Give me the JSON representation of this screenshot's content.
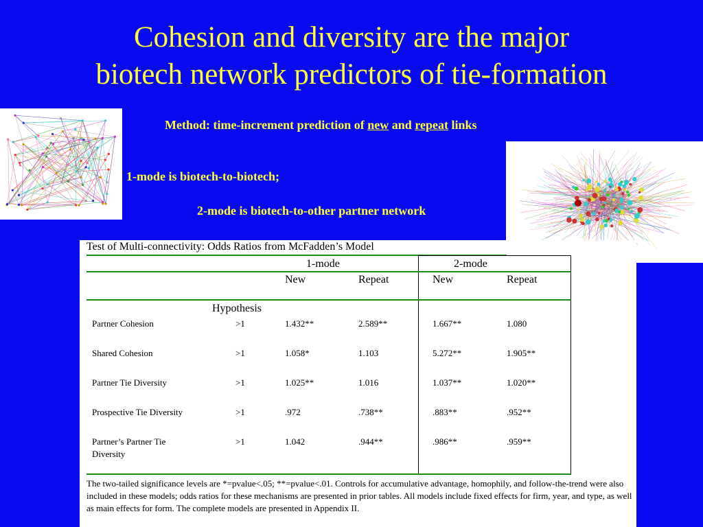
{
  "title_line1": "Cohesion and diversity are the major",
  "title_line2": "biotech network predictors of tie-formation",
  "method": {
    "prefix": "Method: time-increment prediction of ",
    "new": "new",
    "and": " and ",
    "repeat": "repeat",
    "suffix": " links"
  },
  "mode1_text": "1-mode is biotech-to-biotech;",
  "mode2_text": "2-mode is biotech-to-other partner network",
  "table": {
    "title": "Test of Multi-connectivity: Odds Ratios from McFadden’s Model",
    "group1": "1-mode",
    "group2": "2-mode",
    "col_new": "New",
    "col_repeat": "Repeat",
    "hypothesis": "Hypothesis",
    "rows": [
      {
        "label": "Partner Cohesion",
        "hyp": ">1",
        "m1_new": "1.432**",
        "m1_rep": "2.589**",
        "m2_new": "1.667**",
        "m2_rep": "1.080"
      },
      {
        "label": "Shared Cohesion",
        "hyp": ">1",
        "m1_new": "1.058*",
        "m1_rep": "1.103",
        "m2_new": "5.272**",
        "m2_rep": "1.905**"
      },
      {
        "label": "Partner Tie Diversity",
        "hyp": ">1",
        "m1_new": "1.025**",
        "m1_rep": "1.016",
        "m2_new": "1.037**",
        "m2_rep": "1.020**"
      },
      {
        "label": "Prospective Tie Diversity",
        "hyp": ">1",
        "m1_new": ".972",
        "m1_rep": ".738**",
        "m2_new": ".883**",
        "m2_rep": ".952**"
      },
      {
        "label": "Partner’s Partner Tie Diversity",
        "hyp": ">1",
        "m1_new": "1.042",
        "m1_rep": ".944**",
        "m2_new": ".986**",
        "m2_rep": ".959**"
      }
    ],
    "footnote": "The two-tailed significance levels are *=pvalue<.05; **=pvalue<.01. Controls for accumulative advantage, homophily, and follow-the-trend were also included in these models; odds ratios for these mechanisms are presented in prior tables. All models include fixed effects for firm, year, and type, as well as main effects for form. The complete models are presented in Appendix II."
  },
  "colors": {
    "background": "#0a0af0",
    "title": "#ffff33",
    "rule": "#1a8a1a"
  }
}
